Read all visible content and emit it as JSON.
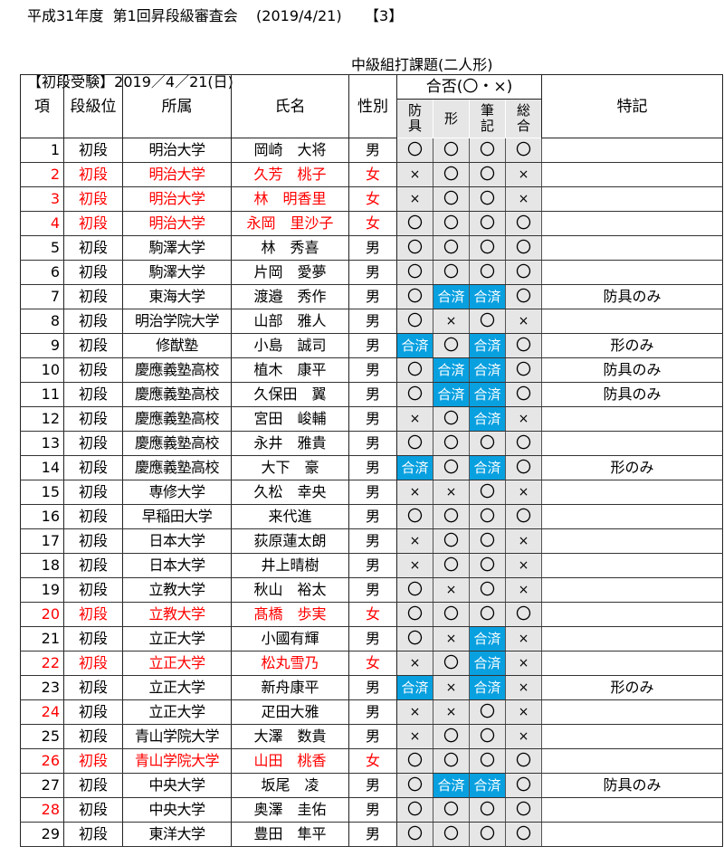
{
  "header": {
    "title": "平成31年度  第1回昇段級審査会    (2019/4/21)     【3】",
    "exam": "【初段受験】2019／4／21(日)",
    "task": "中級組打課題(二人形)"
  },
  "columns": {
    "no": "項",
    "rank": "段級位",
    "affiliation": "所属",
    "name": "氏名",
    "sex": "性別",
    "result_group": "合否(〇・×)",
    "bougu": "防\n具",
    "kata": "形",
    "hikki": "筆\n記",
    "sougou": "総\n合",
    "notes": "特記"
  },
  "colors": {
    "female_red": "#ff0000",
    "passed_blue": "#09a0e0",
    "result_bg": "#e6e6e6"
  },
  "rows": [
    {
      "no": "1",
      "rank": "初段",
      "aff": "明治大学",
      "name": "岡崎　大将",
      "sex": "男",
      "r": [
        "〇",
        "〇",
        "〇",
        "〇"
      ],
      "note": "",
      "red": false,
      "noRed": false
    },
    {
      "no": "2",
      "rank": "初段",
      "aff": "明治大学",
      "name": "久芳　桃子",
      "sex": "女",
      "r": [
        "×",
        "〇",
        "〇",
        "×"
      ],
      "note": "",
      "red": true,
      "noRed": true
    },
    {
      "no": "3",
      "rank": "初段",
      "aff": "明治大学",
      "name": "林　明香里",
      "sex": "女",
      "r": [
        "×",
        "〇",
        "〇",
        "×"
      ],
      "note": "",
      "red": true,
      "noRed": true
    },
    {
      "no": "4",
      "rank": "初段",
      "aff": "明治大学",
      "name": "永岡　里沙子",
      "sex": "女",
      "r": [
        "〇",
        "〇",
        "〇",
        "〇"
      ],
      "note": "",
      "red": true,
      "noRed": true
    },
    {
      "no": "5",
      "rank": "初段",
      "aff": "駒澤大学",
      "name": "林　秀喜",
      "sex": "男",
      "r": [
        "〇",
        "〇",
        "〇",
        "〇"
      ],
      "note": "",
      "red": false,
      "noRed": false
    },
    {
      "no": "6",
      "rank": "初段",
      "aff": "駒澤大学",
      "name": "片岡　愛夢",
      "sex": "男",
      "r": [
        "〇",
        "〇",
        "〇",
        "〇"
      ],
      "note": "",
      "red": false,
      "noRed": false
    },
    {
      "no": "7",
      "rank": "初段",
      "aff": "東海大学",
      "name": "渡邉　秀作",
      "sex": "男",
      "r": [
        "〇",
        "合済",
        "合済",
        "〇"
      ],
      "note": "防具のみ",
      "red": false,
      "noRed": false
    },
    {
      "no": "8",
      "rank": "初段",
      "aff": "明治学院大学",
      "name": "山部　雅人",
      "sex": "男",
      "r": [
        "〇",
        "×",
        "〇",
        "×"
      ],
      "note": "",
      "red": false,
      "noRed": false
    },
    {
      "no": "9",
      "rank": "初段",
      "aff": "修猷塾",
      "name": "小島　誠司",
      "sex": "男",
      "r": [
        "合済",
        "〇",
        "合済",
        "〇"
      ],
      "note": "形のみ",
      "red": false,
      "noRed": false
    },
    {
      "no": "10",
      "rank": "初段",
      "aff": "慶應義塾高校",
      "name": "植木　康平",
      "sex": "男",
      "r": [
        "〇",
        "合済",
        "合済",
        "〇"
      ],
      "note": "防具のみ",
      "red": false,
      "noRed": false
    },
    {
      "no": "11",
      "rank": "初段",
      "aff": "慶應義塾高校",
      "name": "久保田　翼",
      "sex": "男",
      "r": [
        "〇",
        "合済",
        "合済",
        "〇"
      ],
      "note": "防具のみ",
      "red": false,
      "noRed": false
    },
    {
      "no": "12",
      "rank": "初段",
      "aff": "慶應義塾高校",
      "name": "宮田　峻輔",
      "sex": "男",
      "r": [
        "×",
        "〇",
        "合済",
        "×"
      ],
      "note": "",
      "red": false,
      "noRed": false
    },
    {
      "no": "13",
      "rank": "初段",
      "aff": "慶應義塾高校",
      "name": "永井　雅貴",
      "sex": "男",
      "r": [
        "〇",
        "〇",
        "〇",
        "〇"
      ],
      "note": "",
      "red": false,
      "noRed": false
    },
    {
      "no": "14",
      "rank": "初段",
      "aff": "慶應義塾高校",
      "name": "大下　豪",
      "sex": "男",
      "r": [
        "合済",
        "〇",
        "合済",
        "〇"
      ],
      "note": "形のみ",
      "red": false,
      "noRed": false
    },
    {
      "no": "15",
      "rank": "初段",
      "aff": "専修大学",
      "name": "久松　幸央",
      "sex": "男",
      "r": [
        "×",
        "×",
        "〇",
        "×"
      ],
      "note": "",
      "red": false,
      "noRed": false
    },
    {
      "no": "16",
      "rank": "初段",
      "aff": "早稲田大学",
      "name": "来代進",
      "sex": "男",
      "r": [
        "〇",
        "〇",
        "〇",
        "〇"
      ],
      "note": "",
      "red": false,
      "noRed": false
    },
    {
      "no": "17",
      "rank": "初段",
      "aff": "日本大学",
      "name": "荻原蓮太朗",
      "sex": "男",
      "r": [
        "×",
        "〇",
        "〇",
        "×"
      ],
      "note": "",
      "red": false,
      "noRed": false
    },
    {
      "no": "18",
      "rank": "初段",
      "aff": "日本大学",
      "name": "井上晴樹",
      "sex": "男",
      "r": [
        "×",
        "〇",
        "〇",
        "×"
      ],
      "note": "",
      "red": false,
      "noRed": false
    },
    {
      "no": "19",
      "rank": "初段",
      "aff": "立教大学",
      "name": "秋山　裕太",
      "sex": "男",
      "r": [
        "〇",
        "×",
        "〇",
        "×"
      ],
      "note": "",
      "red": false,
      "noRed": false
    },
    {
      "no": "20",
      "rank": "初段",
      "aff": "立教大学",
      "name": "髙橋　歩実",
      "sex": "女",
      "r": [
        "〇",
        "〇",
        "〇",
        "〇"
      ],
      "note": "",
      "red": true,
      "noRed": true
    },
    {
      "no": "21",
      "rank": "初段",
      "aff": "立正大学",
      "name": "小國有輝",
      "sex": "男",
      "r": [
        "〇",
        "×",
        "合済",
        "×"
      ],
      "note": "",
      "red": false,
      "noRed": false
    },
    {
      "no": "22",
      "rank": "初段",
      "aff": "立正大学",
      "name": "松丸雪乃",
      "sex": "女",
      "r": [
        "×",
        "〇",
        "合済",
        "×"
      ],
      "note": "",
      "red": true,
      "noRed": true
    },
    {
      "no": "23",
      "rank": "初段",
      "aff": "立正大学",
      "name": "新舟康平",
      "sex": "男",
      "r": [
        "合済",
        "×",
        "合済",
        "×"
      ],
      "note": "形のみ",
      "red": false,
      "noRed": false
    },
    {
      "no": "24",
      "rank": "初段",
      "aff": "立正大学",
      "name": "疋田大雅",
      "sex": "男",
      "r": [
        "×",
        "×",
        "〇",
        "×"
      ],
      "note": "",
      "red": false,
      "noRed": true
    },
    {
      "no": "25",
      "rank": "初段",
      "aff": "青山学院大学",
      "name": "大澤　数貴",
      "sex": "男",
      "r": [
        "×",
        "〇",
        "〇",
        "×"
      ],
      "note": "",
      "red": false,
      "noRed": false
    },
    {
      "no": "26",
      "rank": "初段",
      "aff": "青山学院大学",
      "name": "山田　桃香",
      "sex": "女",
      "r": [
        "〇",
        "〇",
        "〇",
        "〇"
      ],
      "note": "",
      "red": true,
      "noRed": true
    },
    {
      "no": "27",
      "rank": "初段",
      "aff": "中央大学",
      "name": "坂尾　凌",
      "sex": "男",
      "r": [
        "〇",
        "合済",
        "合済",
        "〇"
      ],
      "note": "防具のみ",
      "red": false,
      "noRed": false
    },
    {
      "no": "28",
      "rank": "初段",
      "aff": "中央大学",
      "name": "奥澤　圭佑",
      "sex": "男",
      "r": [
        "〇",
        "〇",
        "〇",
        "〇"
      ],
      "note": "",
      "red": false,
      "noRed": true
    },
    {
      "no": "29",
      "rank": "初段",
      "aff": "東洋大学",
      "name": "豊田　隼平",
      "sex": "男",
      "r": [
        "〇",
        "〇",
        "〇",
        "〇"
      ],
      "note": "",
      "red": false,
      "noRed": false
    }
  ]
}
